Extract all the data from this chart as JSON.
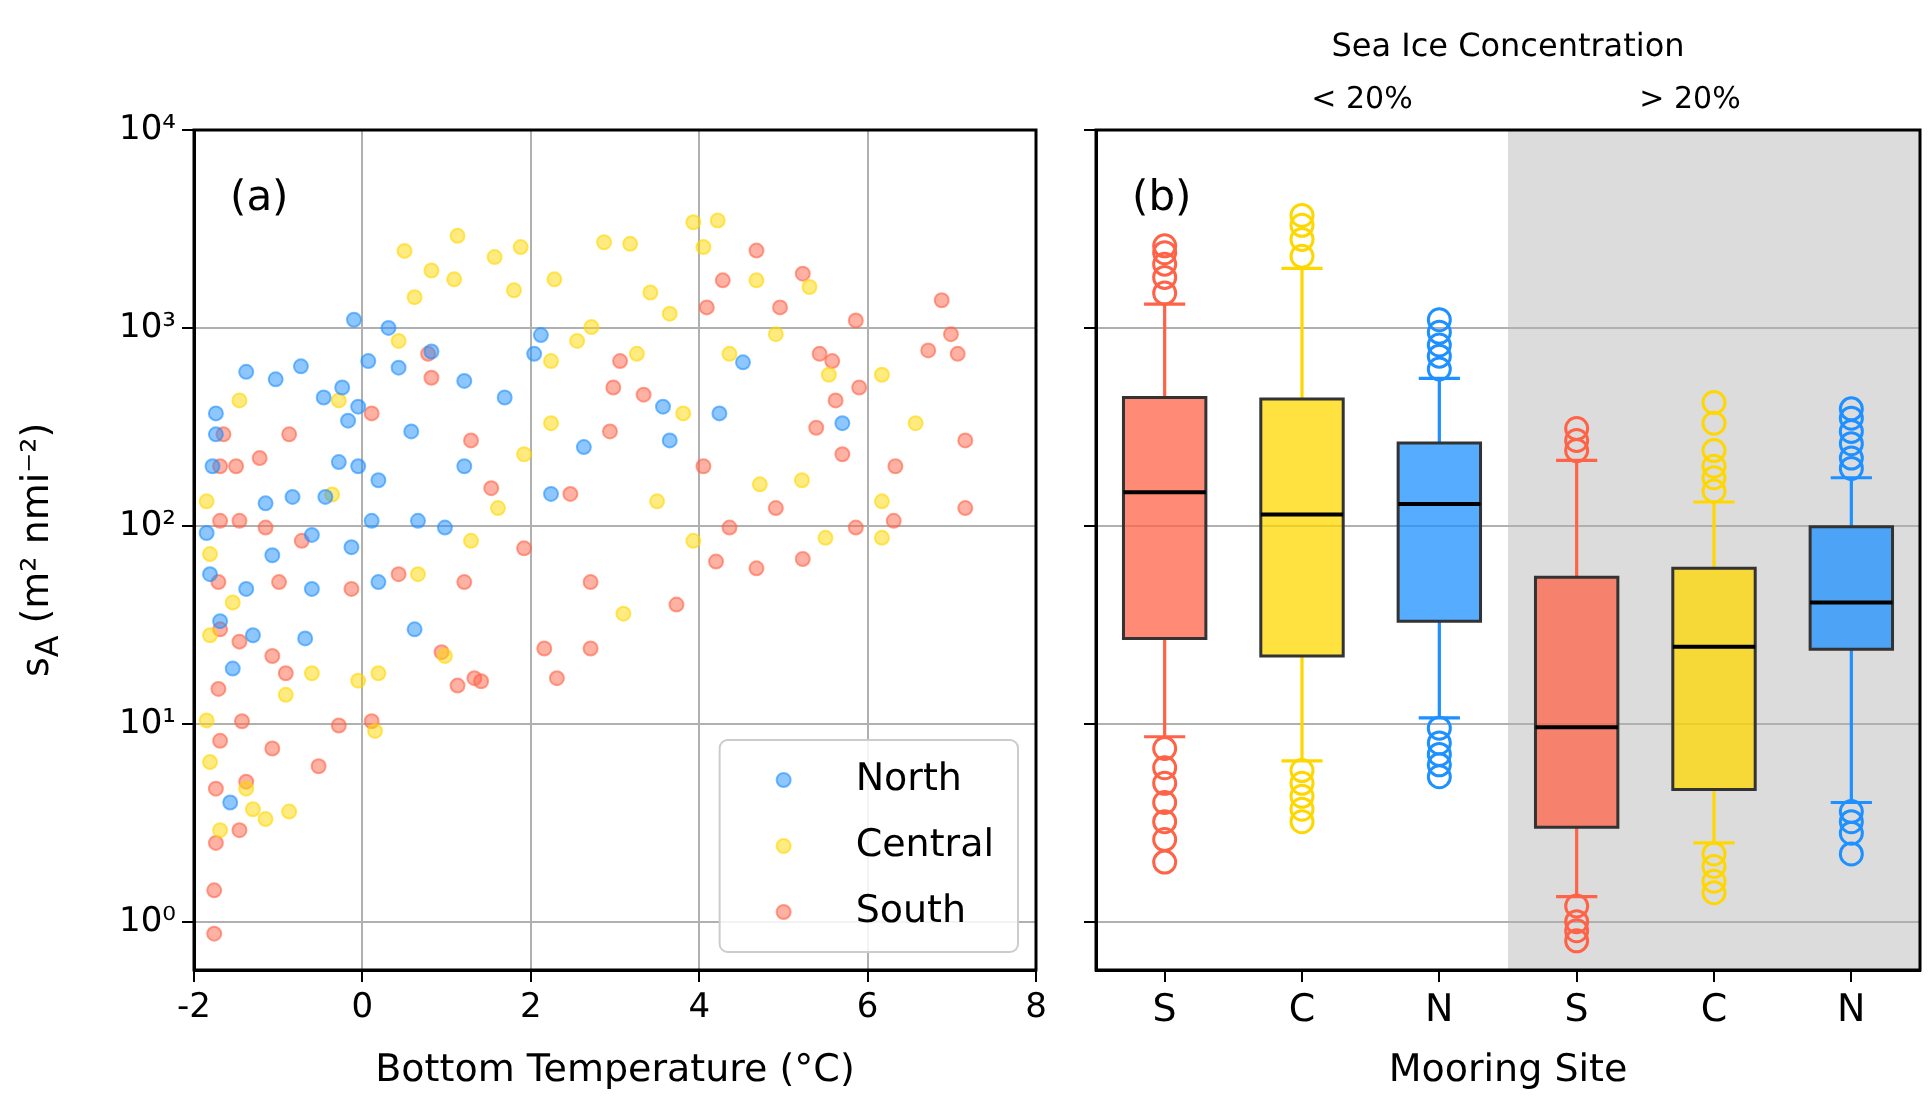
{
  "chart_data": [
    {
      "type": "scatter",
      "xlabel": "Bottom Temperature (°C)",
      "ylabel": "s$_{A}$ (m² nmi⁻²)",
      "annotations": [
        "(a)"
      ],
      "xlim": [
        -2,
        8
      ],
      "xticks": [
        -2,
        0,
        2,
        4,
        6,
        8
      ],
      "ylim": [
        0.57,
        10000
      ],
      "yticks": [
        {
          "value": 1,
          "label": "10⁰"
        },
        {
          "value": 10,
          "label": "10¹"
        },
        {
          "value": 100,
          "label": "10²"
        },
        {
          "value": 1000,
          "label": "10³"
        },
        {
          "value": 10000,
          "label": "10⁴"
        }
      ],
      "log": "y",
      "grid": true,
      "legend": "bottom right",
      "marker": "circle",
      "series": [
        {
          "name": "North",
          "color": "#1e90ff",
          "x": [
            -0.1,
            0.31,
            -1.38,
            -1.03,
            -0.73,
            0.07,
            2.12,
            2.04,
            -0.46,
            -0.24,
            -0.05,
            0.43,
            0.82,
            1.21,
            1.69,
            3.57,
            4.52,
            3.65,
            -1.74,
            -1.74,
            -0.05,
            -0.28,
            0.19,
            0.58,
            1.21,
            2.24,
            2.63,
            4.24,
            5.7,
            -1.15,
            -0.6,
            -0.13,
            0.66,
            0.98,
            -1.07,
            -1.38,
            -0.6,
            0.19,
            -1.69,
            -1.3,
            -0.68,
            0.62,
            -1.54,
            -1.85,
            -1.81,
            -1.57,
            -0.44,
            0.11,
            -0.83,
            -1.78,
            -0.17
          ],
          "values": [
            1100,
            1000,
            600,
            550,
            640,
            680,
            920,
            740,
            445,
            500,
            400,
            630,
            760,
            540,
            445,
            400,
            670,
            270,
            370,
            290,
            200,
            210,
            170,
            300,
            200,
            145,
            250,
            370,
            330,
            130,
            90,
            78,
            106,
            98,
            71,
            48,
            48,
            52,
            33,
            28,
            27,
            30,
            19,
            92,
            57,
            4,
            140,
            106,
            140,
            200,
            340
          ]
        },
        {
          "name": "Central",
          "color": "#ffd700",
          "x": [
            0.5,
            1.13,
            0.82,
            1.09,
            0.62,
            1.57,
            1.88,
            1.8,
            2.28,
            2.87,
            3.18,
            3.42,
            3.93,
            4.22,
            4.05,
            3.65,
            4.68,
            2.55,
            3.26,
            3.81,
            4.36,
            4.91,
            5.54,
            6.17,
            6.57,
            6.17,
            6.17,
            5.5,
            5.22,
            4.72,
            3.93,
            3.5,
            3.1,
            2.24,
            1.92,
            1.61,
            1.29,
            0.66,
            0.98,
            0.19,
            0.15,
            -0.05,
            -0.6,
            -0.91,
            -1.15,
            -1.3,
            -0.87,
            -1.38,
            -1.46,
            -1.54,
            -1.85,
            -1.81,
            -1.81,
            -1.85,
            -1.81,
            -1.69,
            -0.28,
            -0.36,
            0.43,
            2.24,
            2.72,
            5.31
          ],
          "values": [
            2450,
            2920,
            1950,
            1760,
            1430,
            2280,
            2560,
            1550,
            1760,
            2710,
            2660,
            1510,
            3420,
            3490,
            2560,
            1180,
            1740,
            860,
            740,
            370,
            740,
            930,
            580,
            580,
            330,
            133,
            87,
            87,
            170,
            162,
            84,
            133,
            36,
            330,
            230,
            123,
            84,
            57,
            22,
            18,
            9.2,
            16.5,
            18,
            14,
            3.3,
            3.7,
            3.6,
            4.7,
            430,
            41,
            133,
            72,
            28,
            10.4,
            6.4,
            2.9,
            430,
            144,
            860,
            680,
            1010,
            1610
          ]
        },
        {
          "name": "South",
          "color": "#ff6347",
          "x": [
            -1.76,
            -1.76,
            -1.74,
            -1.74,
            -1.69,
            -1.71,
            -1.69,
            -1.71,
            -1.69,
            -1.69,
            -1.65,
            -1.5,
            -1.22,
            -0.87,
            -1.46,
            -1.15,
            -0.72,
            -0.99,
            -1.46,
            -1.07,
            -0.91,
            -1.43,
            -1.07,
            -1.38,
            -1.46,
            -0.52,
            -0.28,
            0.11,
            -0.13,
            0.43,
            0.11,
            0.82,
            0.78,
            1.29,
            1.53,
            1.21,
            1.33,
            1.41,
            1.13,
            0.94,
            2.31,
            2.16,
            1.92,
            2.47,
            2.71,
            2.71,
            2.98,
            3.06,
            2.94,
            3.34,
            3.73,
            4.2,
            4.05,
            4.09,
            4.28,
            4.68,
            4.96,
            5.23,
            5.43,
            5.58,
            5.62,
            5.7,
            5.86,
            5.9,
            6.33,
            6.72,
            6.99,
            7.07,
            6.88,
            7.16,
            7.16,
            6.31,
            5.23,
            4.68,
            4.36,
            4.91,
            5.86,
            5.39
          ],
          "values": [
            0.87,
            1.44,
            2.5,
            4.7,
            8.2,
            15,
            30,
            52,
            106,
            200,
            290,
            200,
            220,
            290,
            106,
            98,
            84,
            52,
            26,
            22,
            18,
            10.3,
            7.5,
            5.1,
            2.9,
            6.1,
            9.8,
            10.3,
            48,
            57,
            370,
            560,
            740,
            270,
            155,
            52,
            17,
            16.4,
            15.6,
            23,
            17,
            24,
            77,
            145,
            24,
            52,
            500,
            680,
            300,
            460,
            40,
            66,
            200,
            1270,
            1740,
            2460,
            1270,
            1880,
            740,
            680,
            430,
            230,
            1090,
            500,
            200,
            770,
            930,
            740,
            1380,
            270,
            123,
            106,
            68,
            61,
            98,
            123,
            98,
            313
          ]
        }
      ]
    },
    {
      "type": "box",
      "title": "Sea Ice Concentration",
      "xlabel": "Mooring Site",
      "annotations": [
        "(b)",
        "< 20%",
        "> 20%"
      ],
      "categories": [
        "S",
        "C",
        "N",
        "S",
        "C",
        "N"
      ],
      "colors": [
        "#ff6347",
        "#ffd700",
        "#1e90ff",
        "#ff6347",
        "#ffd700",
        "#1e90ff"
      ],
      "ylim": [
        0.57,
        10000
      ],
      "yticks": [
        {
          "value": 1,
          "label": null
        },
        {
          "value": 10,
          "label": null
        },
        {
          "value": 100,
          "label": null
        },
        {
          "value": 1000,
          "label": null
        },
        {
          "value": 10000,
          "label": null
        }
      ],
      "log": "y",
      "grid": "y",
      "tick_labels": "x",
      "boxes": [
        {
          "low": 8.6,
          "q1": 27,
          "median": 148,
          "q3": 445,
          "high": 1320,
          "outliers": [
            1500,
            1800,
            2100,
            2400,
            2600,
            7.5,
            6,
            5,
            4,
            3.2,
            2.6,
            2
          ]
        },
        {
          "low": 6.5,
          "q1": 22,
          "median": 114,
          "q3": 437,
          "high": 2000,
          "outliers": [
            2300,
            2800,
            3300,
            3700,
            5.8,
            5,
            4.3,
            3.7,
            3.2
          ]
        },
        {
          "low": 10.7,
          "q1": 33,
          "median": 129,
          "q3": 262,
          "high": 556,
          "outliers": [
            620,
            720,
            820,
            950,
            1100,
            9.5,
            8,
            7,
            6.2,
            5.4
          ]
        },
        {
          "low": 1.34,
          "q1": 3,
          "median": 9.6,
          "q3": 55,
          "high": 214,
          "outliers": [
            240,
            270,
            310,
            1.2,
            1,
            0.9,
            0.8
          ]
        },
        {
          "low": 2.5,
          "q1": 4.65,
          "median": 24.5,
          "q3": 61,
          "high": 132,
          "outliers": [
            150,
            175,
            200,
            240,
            330,
            420,
            2.2,
            1.9,
            1.6,
            1.4
          ]
        },
        {
          "low": 4,
          "q1": 23.8,
          "median": 41,
          "q3": 99,
          "high": 175,
          "outliers": [
            195,
            220,
            260,
            300,
            350,
            390,
            3.6,
            3.2,
            2.8,
            2.2
          ]
        }
      ]
    }
  ]
}
